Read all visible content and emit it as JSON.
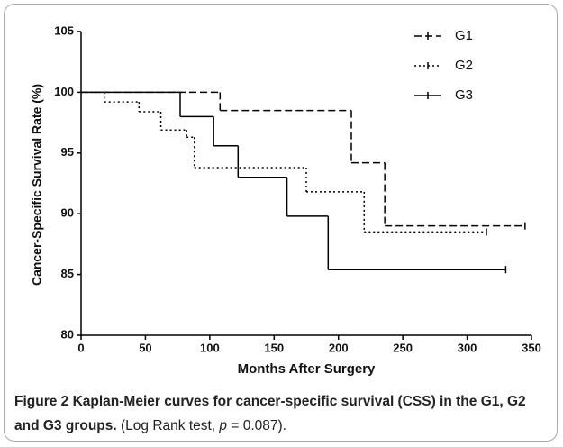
{
  "chart_data": {
    "type": "step",
    "ylabel": "Cancer-Specific Survival Rate (%)",
    "xlabel": "Months After Surgery",
    "xlim": [
      0,
      350
    ],
    "xticks": [
      0,
      50,
      100,
      150,
      200,
      250,
      300,
      350
    ],
    "ylim": [
      80,
      105
    ],
    "yticks": [
      80,
      85,
      90,
      95,
      100,
      105
    ],
    "legend": "upper right",
    "series": [
      {
        "name": "G1",
        "color": "#000000",
        "line_style": "dashed",
        "x": [
          0,
          108,
          210,
          236,
          345
        ],
        "values": [
          100,
          98.5,
          94.2,
          89,
          89
        ]
      },
      {
        "name": "G2",
        "color": "#000000",
        "line_style": "dotted",
        "x": [
          0,
          18,
          45,
          62,
          82,
          88,
          175,
          220,
          315
        ],
        "values": [
          100,
          99.2,
          98.4,
          96.9,
          96.3,
          93.8,
          91.8,
          88.5,
          88.5
        ]
      },
      {
        "name": "G3",
        "color": "#000000",
        "line_style": "solid",
        "x": [
          0,
          77,
          103,
          122,
          160,
          192,
          330
        ],
        "values": [
          100,
          98,
          95.6,
          93,
          89.8,
          85.4,
          85.4
        ]
      }
    ],
    "caption": {
      "bold": "Figure 2 Kaplan-Meier curves for cancer-specific survival (CSS) in the G1, G2 and G3 groups.",
      "text": " (Log Rank test, ",
      "italic": "p",
      "text_end": " = 0.087)."
    }
  }
}
